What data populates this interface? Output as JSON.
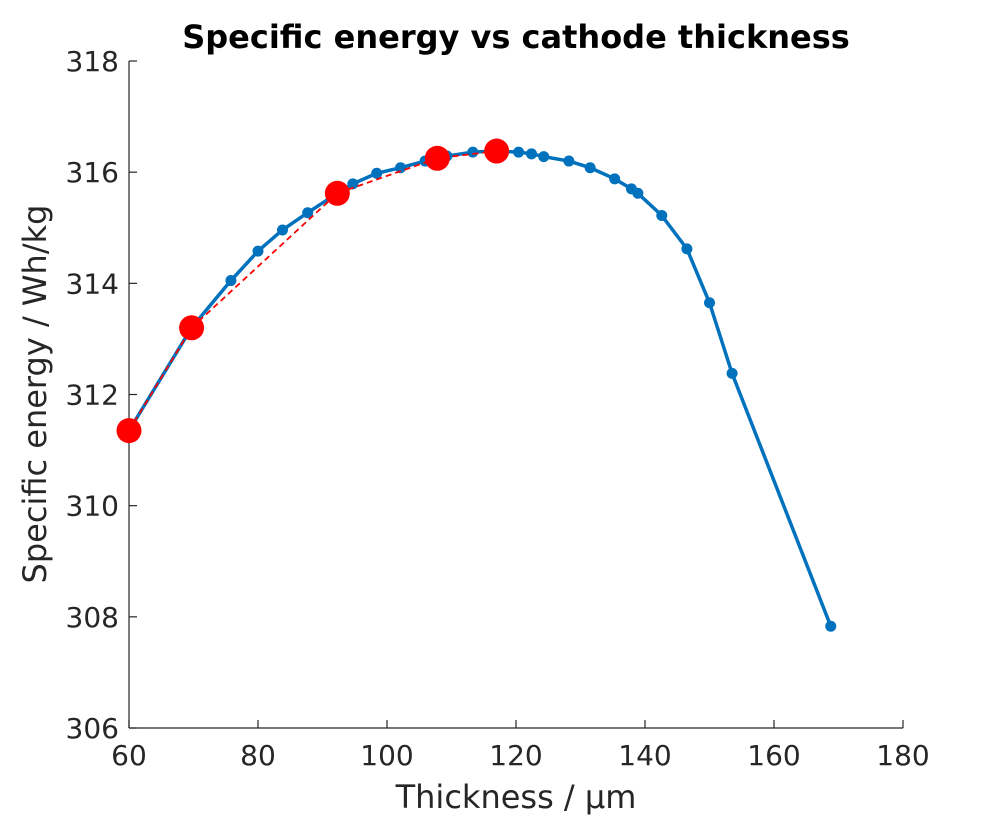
{
  "chart_data": {
    "type": "line",
    "title": "Specific energy vs cathode thickness",
    "xlabel": "Thickness / µm",
    "ylabel": "Specific energy / Wh/kg",
    "xlim": [
      60,
      180
    ],
    "ylim": [
      306,
      318
    ],
    "xticks": [
      60,
      80,
      100,
      120,
      140,
      160,
      180
    ],
    "yticks": [
      306,
      308,
      310,
      312,
      314,
      316,
      318
    ],
    "grid": false,
    "series": [
      {
        "style": "solid-line-with-dots",
        "color": "#0072BD",
        "x": [
          60,
          69.7,
          75.8,
          80,
          83.8,
          87.7,
          92.3,
          94.7,
          98.4,
          102.1,
          105.9,
          109.3,
          113.3,
          116.9,
          120.4,
          122.4,
          124.3,
          128.2,
          131.5,
          135.3,
          137.9,
          138.9,
          142.6,
          146.5,
          150,
          153.5,
          168.8
        ],
        "y": [
          311.35,
          313.2,
          314.05,
          314.58,
          314.96,
          315.27,
          315.62,
          315.79,
          315.98,
          316.08,
          316.2,
          316.29,
          316.36,
          316.38,
          316.36,
          316.33,
          316.28,
          316.2,
          316.08,
          315.88,
          315.7,
          315.62,
          315.22,
          314.62,
          313.65,
          312.38,
          307.83
        ]
      },
      {
        "style": "dashed-line",
        "color": "#FF0000",
        "x": [
          60,
          69.7,
          92.3,
          107.8,
          117.0
        ],
        "y": [
          311.35,
          313.2,
          315.62,
          316.25,
          316.38
        ]
      },
      {
        "style": "large-markers",
        "color": "#FF0000",
        "x": [
          60,
          69.7,
          92.3,
          107.8,
          117.0
        ],
        "y": [
          311.35,
          313.2,
          315.62,
          316.25,
          316.38
        ]
      }
    ]
  }
}
